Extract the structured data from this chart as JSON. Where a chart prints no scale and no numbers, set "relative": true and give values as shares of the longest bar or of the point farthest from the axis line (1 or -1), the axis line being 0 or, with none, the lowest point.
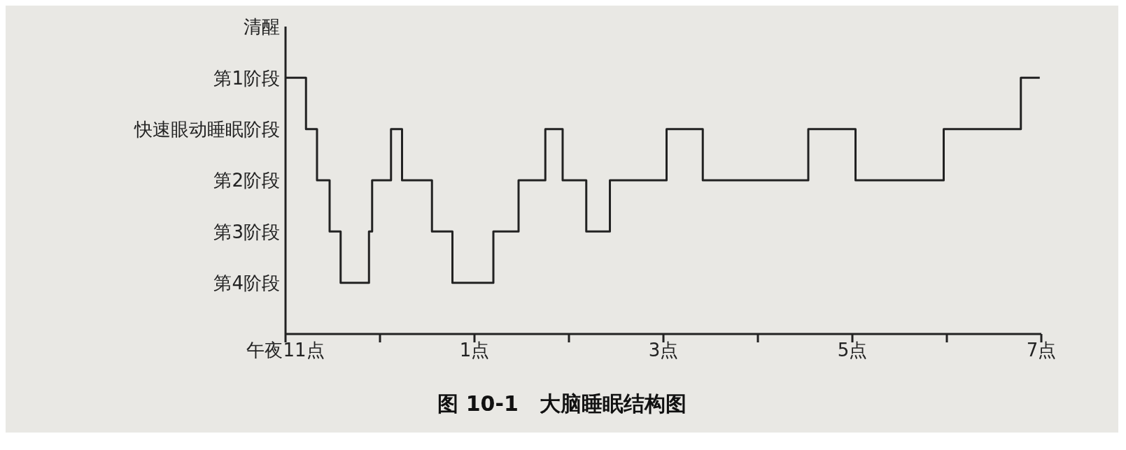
{
  "chart_data": {
    "type": "step",
    "title": "图 10-1　大脑睡眠结构图",
    "x": [
      "--01-01T23:00",
      "--01-01T23:13",
      "--01-01T23:20",
      "--01-01T23:28",
      "--01-01T23:35",
      "--01-01T23:53",
      "--01-01T23:55",
      "--01-02T00:07",
      "--01-02T00:14",
      "--01-02T00:33",
      "--01-02T00:46",
      "--01-02T01:12",
      "--01-02T01:28",
      "--01-02T01:45",
      "--01-02T01:56",
      "--01-02T02:11",
      "--01-02T02:26",
      "--01-02T03:02",
      "--01-02T03:25",
      "--01-02T04:32",
      "--01-02T05:02",
      "--01-02T05:58",
      "--01-02T06:47",
      "--01-02T06:59"
    ],
    "relative": true,
    "values": [
      1,
      0.8,
      0.6,
      0.4,
      0.2,
      0.4,
      0.6,
      0.8,
      0.6,
      0.4,
      0.2,
      0.4,
      0.6,
      0.8,
      0.6,
      0.4,
      0.6,
      0.8,
      0.6,
      0.8,
      0.6,
      0.8,
      1,
      1
    ],
    "annotations": [
      "清醒",
      "第1阶段",
      "快速眼动睡眠阶段",
      "第2阶段",
      "第3阶段",
      "第4阶段"
    ],
    "color": "#222222",
    "xlim": [
      "--01-01T23:00",
      "--01-02T07:00"
    ],
    "xticks": [
      {
        "value": "--01-01T23:00",
        "label": "午夜11点"
      },
      {
        "value": "--01-02T00:00",
        "label": null
      },
      {
        "value": "--01-02T01:00",
        "label": "1点"
      },
      {
        "value": "--01-02T02:00",
        "label": null
      },
      {
        "value": "--01-02T03:00",
        "label": "3点"
      },
      {
        "value": "--01-02T04:00",
        "label": null
      },
      {
        "value": "--01-02T05:00",
        "label": "5点"
      },
      {
        "value": "--01-02T06:00",
        "label": null
      },
      {
        "value": "--01-02T07:00",
        "label": "7点"
      }
    ],
    "grid": false,
    "legend": false,
    "marker": "none",
    "line_style": "solid"
  }
}
